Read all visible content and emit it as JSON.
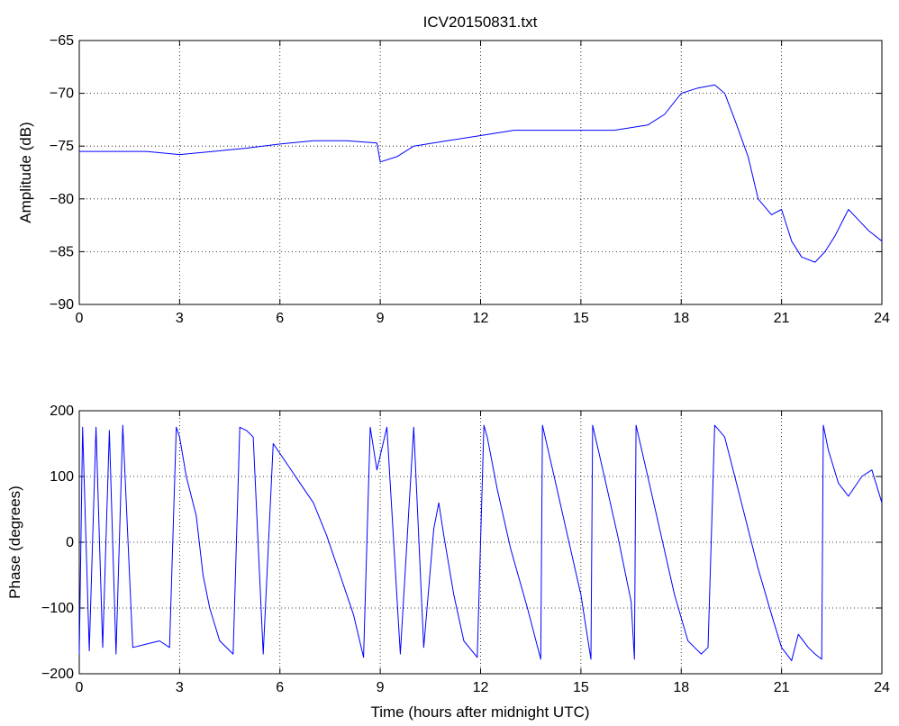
{
  "chart_data": [
    {
      "type": "line",
      "title": "ICV20150831.txt",
      "xlabel": "",
      "ylabel": "Amplitude (dB)",
      "xlim": [
        0,
        24
      ],
      "ylim": [
        -90,
        -65
      ],
      "xticks": [
        "0",
        "3",
        "6",
        "9",
        "12",
        "15",
        "18",
        "21",
        "24"
      ],
      "yticks": [
        "−65",
        "−70",
        "−75",
        "−80",
        "−85",
        "−90"
      ],
      "grid": true,
      "color": "#0000ff",
      "series": [
        {
          "x": [
            0,
            1,
            2,
            3,
            4,
            5,
            6,
            7,
            8,
            8.9,
            9.0,
            9.5,
            10,
            11,
            12,
            13,
            14,
            15,
            16,
            17,
            17.5,
            18,
            18.5,
            19,
            19.3,
            19.6,
            20,
            20.3,
            20.7,
            21,
            21.3,
            21.6,
            22,
            22.3,
            22.6,
            23,
            23.3,
            23.6,
            24
          ],
          "y": [
            -75.5,
            -75.5,
            -75.5,
            -75.8,
            -75.5,
            -75.2,
            -74.8,
            -74.5,
            -74.5,
            -74.7,
            -76.5,
            -76,
            -75,
            -74.5,
            -74,
            -73.5,
            -73.5,
            -73.5,
            -73.5,
            -73,
            -72,
            -70,
            -69.5,
            -69.2,
            -70,
            -72.5,
            -76,
            -80,
            -81.5,
            -81,
            -84,
            -85.5,
            -86,
            -85,
            -83.5,
            -81,
            -82,
            -83,
            -84
          ]
        }
      ]
    },
    {
      "type": "line",
      "title": "",
      "xlabel": "Time (hours after midnight UTC)",
      "ylabel": "Phase (degrees)",
      "xlim": [
        0,
        24
      ],
      "ylim": [
        -200,
        200
      ],
      "xticks": [
        "0",
        "3",
        "6",
        "9",
        "12",
        "15",
        "18",
        "21",
        "24"
      ],
      "yticks": [
        "200",
        "100",
        "0",
        "−100",
        "−200"
      ],
      "grid": true,
      "color": "#0000ff",
      "series": [
        {
          "x": [
            0.0,
            0.1,
            0.3,
            0.5,
            0.7,
            0.9,
            1.1,
            1.3,
            1.6,
            2.0,
            2.4,
            2.7,
            2.9,
            3.0,
            3.2,
            3.5,
            3.7,
            3.9,
            4.2,
            4.6,
            4.8,
            5.0,
            5.2,
            5.5,
            5.8,
            6.2,
            6.6,
            7.0,
            7.4,
            7.8,
            8.2,
            8.5,
            8.7,
            8.9,
            9.2,
            9.6,
            10.0,
            10.3,
            10.6,
            10.75,
            10.9,
            11.2,
            11.5,
            11.9,
            12.1,
            12.2,
            12.5,
            12.9,
            13.4,
            13.8,
            13.85,
            14.2,
            14.6,
            15.0,
            15.3,
            15.35,
            15.7,
            16.1,
            16.5,
            16.6,
            16.65,
            17.0,
            17.4,
            17.8,
            18.2,
            18.4,
            18.6,
            18.8,
            19.0,
            19.3,
            19.6,
            19.9,
            20.3,
            20.7,
            21.0,
            21.3,
            21.5,
            21.8,
            22.0,
            22.2,
            22.25,
            22.4,
            22.7,
            23.0,
            23.4,
            23.7,
            24.0
          ],
          "y": [
            -170,
            175,
            -165,
            175,
            -160,
            170,
            -170,
            178,
            -160,
            -155,
            -150,
            -160,
            175,
            160,
            100,
            40,
            -50,
            -100,
            -150,
            -170,
            175,
            170,
            160,
            -170,
            150,
            120,
            90,
            60,
            10,
            -50,
            -110,
            -175,
            175,
            110,
            175,
            -170,
            175,
            -160,
            20,
            60,
            10,
            -80,
            -150,
            -175,
            178,
            160,
            80,
            -10,
            -100,
            -178,
            178,
            100,
            10,
            -80,
            -178,
            178,
            100,
            10,
            -90,
            -178,
            178,
            100,
            10,
            -80,
            -150,
            -160,
            -170,
            -160,
            178,
            160,
            100,
            40,
            -40,
            -110,
            -160,
            -180,
            -140,
            -160,
            -170,
            -178,
            178,
            140,
            90,
            70,
            100,
            110,
            60
          ]
        }
      ]
    }
  ]
}
